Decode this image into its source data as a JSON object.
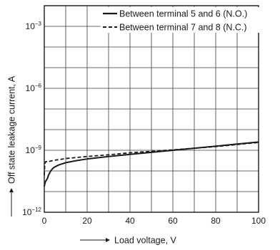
{
  "chart_data": {
    "type": "line",
    "xlabel": "Load voltage, V",
    "ylabel": "Off state leakage current, A",
    "xlim": [
      0,
      100
    ],
    "ylim_log10": [
      -12,
      -2
    ],
    "y_scale": "log",
    "grid": true,
    "legend_position": "top-right",
    "x_ticks": [
      {
        "value": 0,
        "label": "0"
      },
      {
        "value": 20,
        "label": "20"
      },
      {
        "value": 40,
        "label": "40"
      },
      {
        "value": 60,
        "label": "60"
      },
      {
        "value": 80,
        "label": "80"
      },
      {
        "value": 100,
        "label": "100"
      }
    ],
    "y_ticks": [
      {
        "value": -12,
        "base": "10",
        "exp": "−12"
      },
      {
        "value": -9,
        "base": "10",
        "exp": "−9"
      },
      {
        "value": -6,
        "base": "10",
        "exp": "−6"
      },
      {
        "value": -3,
        "base": "10",
        "exp": "−3"
      }
    ],
    "series": [
      {
        "name": "Between terminal 5 and 6 (N.O.)",
        "style": "solid",
        "x": [
          0,
          0.3,
          0.6,
          1,
          1.5,
          2,
          3,
          4,
          5,
          7,
          10,
          15,
          20,
          30,
          40,
          50,
          60,
          70,
          80,
          90,
          100
        ],
        "log10_y": [
          -10.75,
          -10.6,
          -10.5,
          -10.45,
          -10.35,
          -10.2,
          -10.0,
          -9.87,
          -9.8,
          -9.7,
          -9.6,
          -9.5,
          -9.42,
          -9.3,
          -9.2,
          -9.1,
          -9.0,
          -8.9,
          -8.8,
          -8.7,
          -8.6
        ]
      },
      {
        "name": "Between terminal 7 and 8 (N.C.)",
        "style": "dashed",
        "x": [
          0,
          0.2,
          0.4,
          0.7,
          1,
          2,
          3,
          5,
          10,
          20,
          30,
          40,
          50,
          60,
          70,
          80,
          90,
          100
        ],
        "log10_y": [
          -10.2,
          -9.75,
          -9.6,
          -9.55,
          -9.55,
          -9.55,
          -9.52,
          -9.48,
          -9.4,
          -9.3,
          -9.22,
          -9.12,
          -9.05,
          -8.98,
          -8.9,
          -8.82,
          -8.72,
          -8.62
        ]
      }
    ]
  }
}
